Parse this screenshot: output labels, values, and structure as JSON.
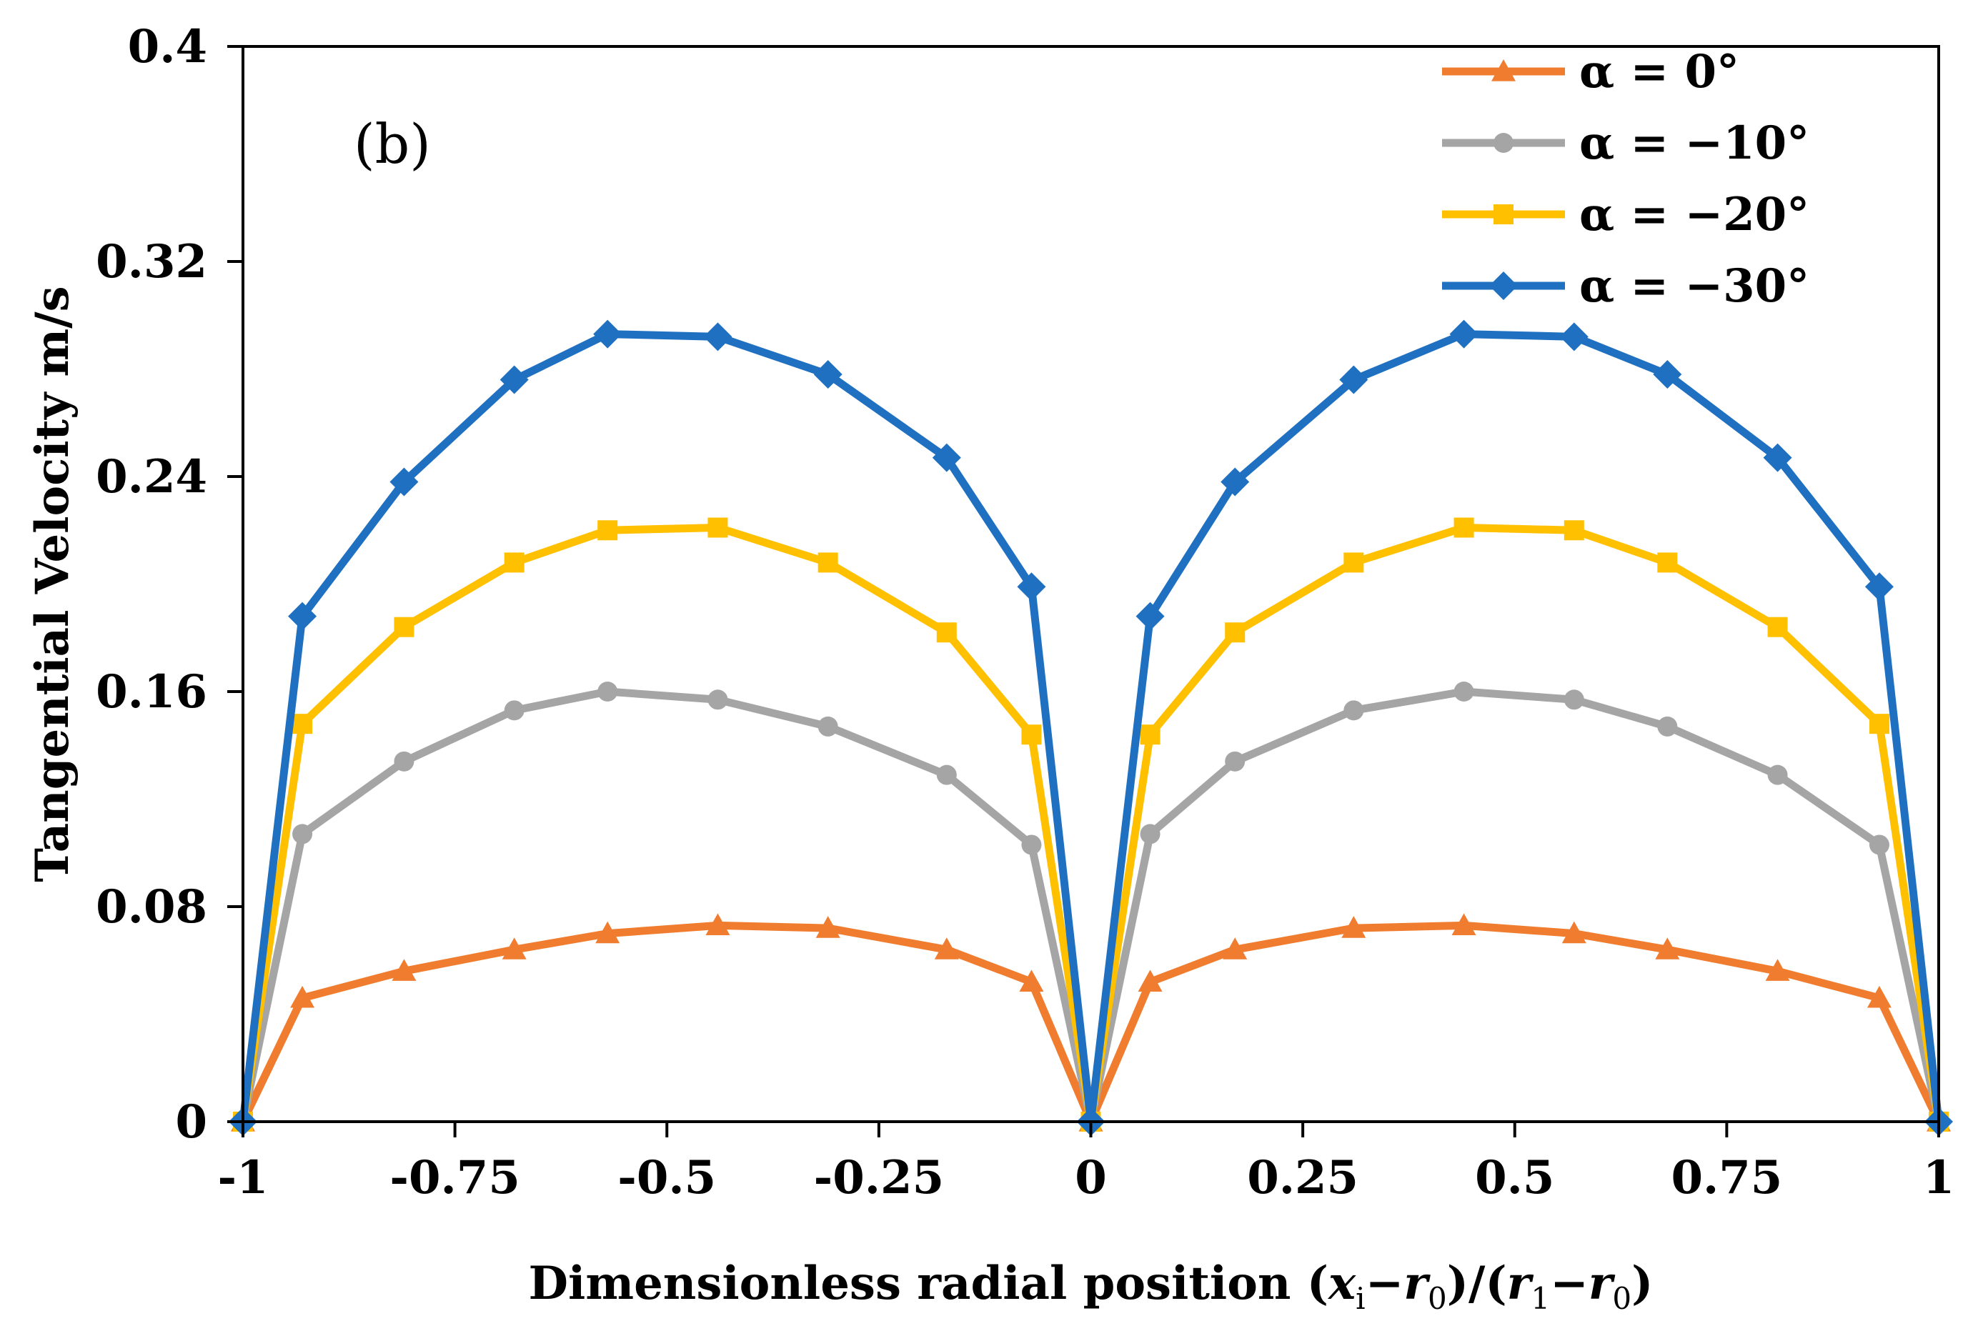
{
  "chart_data": {
    "type": "line",
    "panel_label": "(b)",
    "xlabel_parts": [
      "Dimensionless radial position (",
      "x",
      "i",
      "−",
      "r",
      "0",
      ")/(",
      "r",
      "1",
      "−",
      "r",
      "0",
      ")"
    ],
    "ylabel": "Tangential Velocity m/s",
    "xlim": [
      -1,
      1
    ],
    "ylim": [
      0,
      0.4
    ],
    "xticks": [
      -1,
      -0.75,
      -0.5,
      -0.25,
      0,
      0.25,
      0.5,
      0.75,
      1
    ],
    "xtick_labels": [
      "-1",
      "-0.75",
      "-0.5",
      "-0.25",
      "0",
      "0.25",
      "0.5",
      "0.75",
      "1"
    ],
    "yticks": [
      0,
      0.08,
      0.16,
      0.24,
      0.32,
      0.4
    ],
    "ytick_labels": [
      "0",
      "0.08",
      "0.16",
      "0.24",
      "0.32",
      "0.4"
    ],
    "legend_position": "top-right",
    "x": [
      -1,
      -0.93,
      -0.81,
      -0.68,
      -0.57,
      -0.44,
      -0.31,
      -0.17,
      -0.07,
      0,
      0.07,
      0.17,
      0.31,
      0.44,
      0.57,
      0.68,
      0.81,
      0.93,
      1
    ],
    "series": [
      {
        "name": "α = 0°",
        "color": "#f07d2f",
        "marker": "triangle",
        "values": [
          0,
          0.046,
          0.056,
          0.064,
          0.07,
          0.073,
          0.072,
          0.064,
          0.052,
          0,
          0.052,
          0.064,
          0.072,
          0.073,
          0.07,
          0.064,
          0.056,
          0.046,
          0
        ]
      },
      {
        "name": "α = −10°",
        "color": "#a5a5a5",
        "marker": "circle",
        "values": [
          0,
          0.107,
          0.134,
          0.153,
          0.16,
          0.157,
          0.147,
          0.129,
          0.103,
          0,
          0.107,
          0.134,
          0.153,
          0.16,
          0.157,
          0.147,
          0.129,
          0.103,
          0
        ]
      },
      {
        "name": "α = −20°",
        "color": "#ffc000",
        "marker": "square",
        "values": [
          0,
          0.148,
          0.184,
          0.208,
          0.22,
          0.221,
          0.208,
          0.182,
          0.144,
          0,
          0.144,
          0.182,
          0.208,
          0.221,
          0.22,
          0.208,
          0.184,
          0.148,
          0
        ]
      },
      {
        "name": "α = −30°",
        "color": "#1f70c1",
        "marker": "diamond",
        "values": [
          0,
          0.188,
          0.238,
          0.276,
          0.293,
          0.292,
          0.278,
          0.247,
          0.199,
          0,
          0.188,
          0.238,
          0.276,
          0.293,
          0.292,
          0.278,
          0.247,
          0.199,
          0
        ]
      }
    ]
  }
}
